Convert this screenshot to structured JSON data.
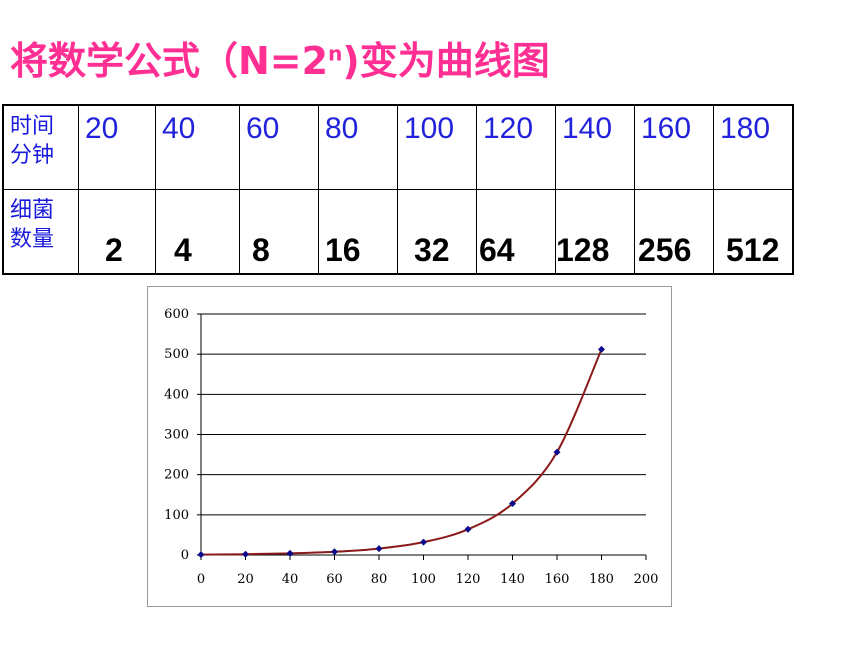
{
  "title": {
    "main": "将数学公式（N=2",
    "sup": "n",
    "tail": ")变为曲线图"
  },
  "table": {
    "row_headers": [
      "时间\n分钟",
      "细菌\n数量"
    ],
    "times": [
      "20",
      "40",
      "60",
      "80",
      "100",
      "120",
      "140",
      "160",
      "180"
    ],
    "counts": [
      "2",
      "4",
      "8",
      "16",
      "32",
      "64",
      "128",
      "256",
      "512"
    ]
  },
  "chart_data": {
    "type": "line",
    "x": [
      0,
      20,
      40,
      60,
      80,
      100,
      120,
      140,
      160,
      180
    ],
    "series": [
      {
        "values": [
          1,
          2,
          4,
          8,
          16,
          32,
          64,
          128,
          256,
          512
        ]
      }
    ],
    "xlim": [
      0,
      200
    ],
    "ylim": [
      0,
      600
    ],
    "x_ticks": [
      "0",
      "20",
      "40",
      "60",
      "80",
      "100",
      "120",
      "140",
      "160",
      "180",
      "200"
    ],
    "y_ticks": [
      "0",
      "100",
      "200",
      "300",
      "400",
      "500",
      "600"
    ],
    "grid": true,
    "legend": "none",
    "colors": {
      "line": "#8b1a1a",
      "marker": "#0a0a8a",
      "grid": "#000000"
    }
  }
}
